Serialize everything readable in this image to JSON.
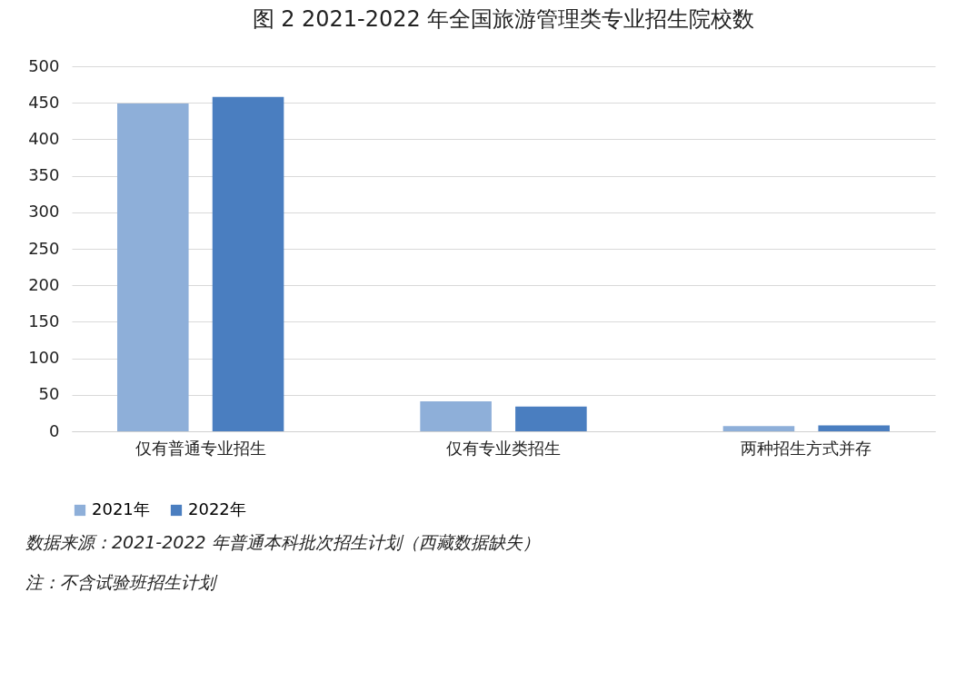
{
  "chart_data": {
    "type": "bar",
    "title": "图 2 2021-2022 年全国旅游管理类专业招生院校数",
    "categories": [
      "仅有普通专业招生",
      "仅有专业类招生",
      "两种招生方式并存"
    ],
    "series": [
      {
        "name": "2021年",
        "color": "#8eafd9",
        "values": [
          449,
          41,
          7
        ]
      },
      {
        "name": "2022年",
        "color": "#4a7ec0",
        "values": [
          458,
          34,
          8
        ]
      }
    ],
    "ylim": [
      0,
      500
    ],
    "yticks": [
      0,
      50,
      100,
      150,
      200,
      250,
      300,
      350,
      400,
      450,
      500
    ],
    "grid": "y",
    "legend": "bottom",
    "annotations": [
      "数据来源：2021-2022 年普通本科批次招生计划（西藏数据缺失）",
      "注：不含试验班招生计划"
    ]
  }
}
